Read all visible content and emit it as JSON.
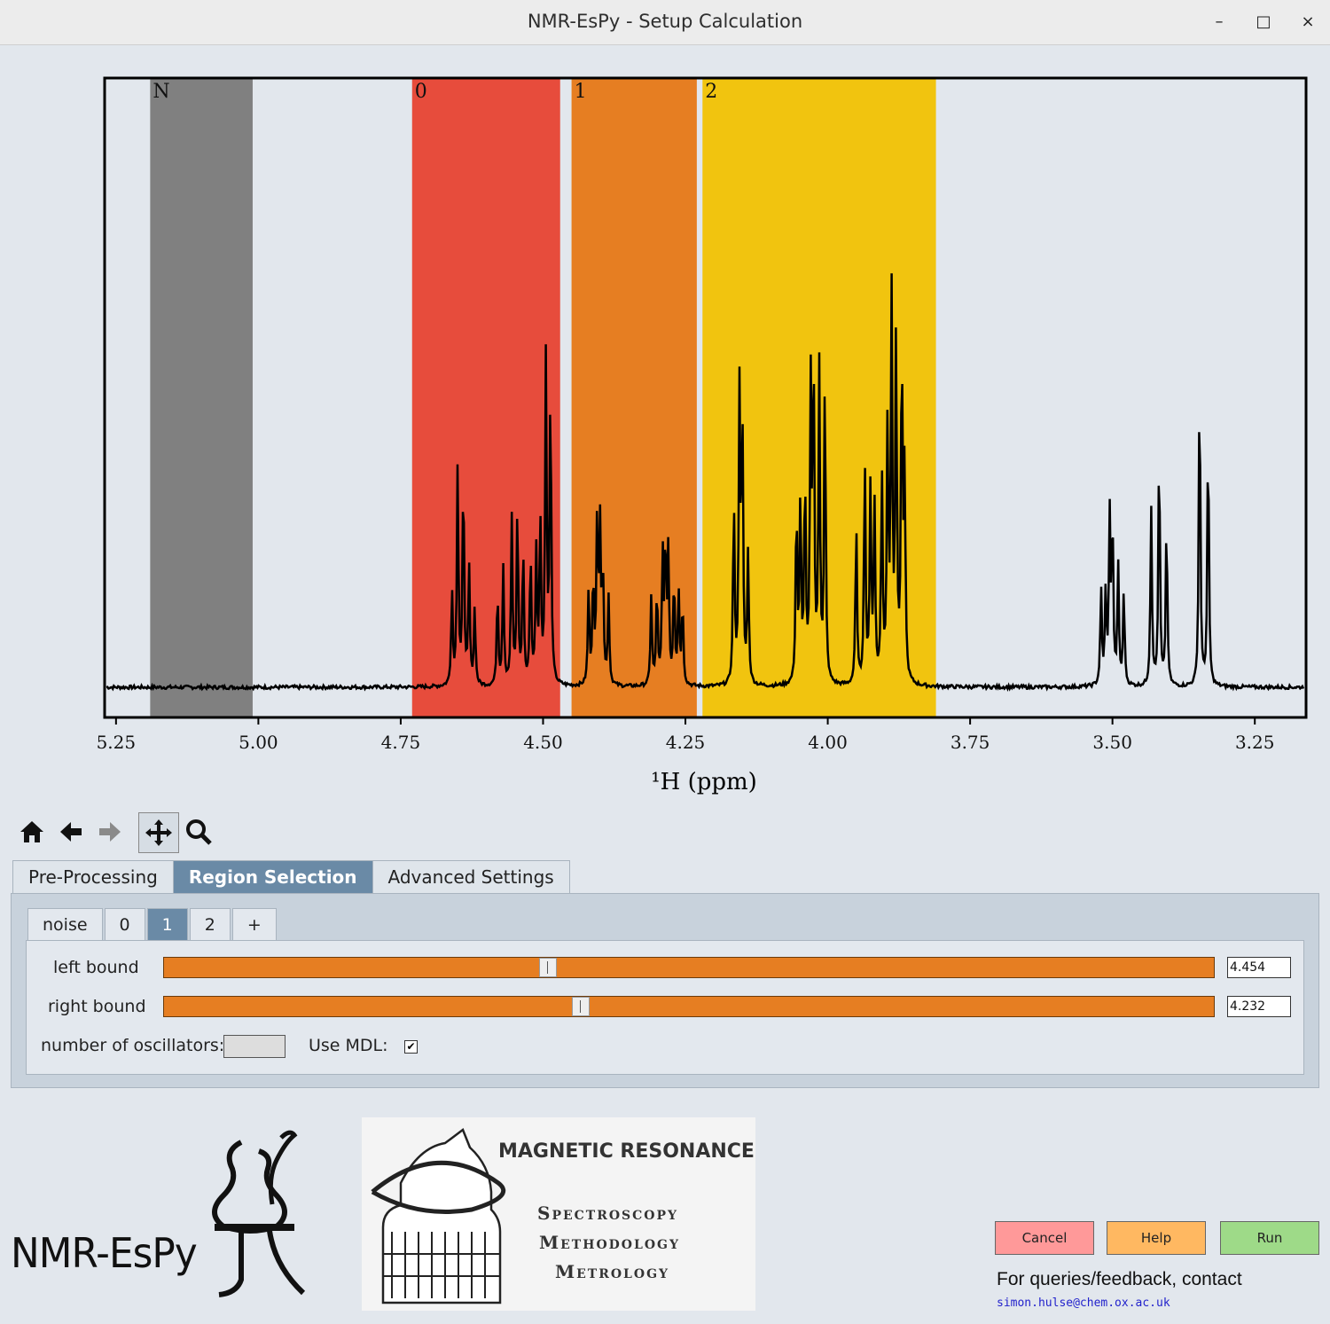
{
  "window": {
    "title": "NMR-EsPy - Setup Calculation",
    "controls": [
      "–",
      "□",
      "×"
    ]
  },
  "plot": {
    "region_labels": [
      "N",
      "0",
      "1",
      "2"
    ],
    "tick_labels": [
      "5.25",
      "5.00",
      "4.75",
      "4.50",
      "4.25",
      "4.00",
      "3.75",
      "3.50",
      "3.25"
    ],
    "xlabel": "¹H (ppm)"
  },
  "chart_data": {
    "type": "line",
    "xlabel": "¹H (ppm)",
    "xlim": [
      5.27,
      3.16
    ],
    "xticks": [
      5.25,
      5.0,
      4.75,
      4.5,
      4.25,
      4.0,
      3.75,
      3.5,
      3.25
    ],
    "regions": [
      {
        "label": "N",
        "from": 5.19,
        "to": 5.01,
        "color": "#808080"
      },
      {
        "label": "0",
        "from": 4.73,
        "to": 4.47,
        "color": "#e74c3c"
      },
      {
        "label": "1",
        "from": 4.45,
        "to": 4.23,
        "color": "#e67e22"
      },
      {
        "label": "2",
        "from": 4.22,
        "to": 3.81,
        "color": "#f1c40f"
      }
    ],
    "peaks": [
      [
        4.66,
        0.16
      ],
      [
        4.65,
        0.37
      ],
      [
        4.64,
        0.36
      ],
      [
        4.63,
        0.2
      ],
      [
        4.62,
        0.13
      ],
      [
        4.58,
        0.16
      ],
      [
        4.57,
        0.2
      ],
      [
        4.555,
        0.28
      ],
      [
        4.545,
        0.3
      ],
      [
        4.535,
        0.23
      ],
      [
        4.522,
        0.22
      ],
      [
        4.512,
        0.22
      ],
      [
        4.505,
        0.28
      ],
      [
        4.495,
        0.55
      ],
      [
        4.487,
        0.5
      ],
      [
        4.42,
        0.16
      ],
      [
        4.412,
        0.18
      ],
      [
        4.405,
        0.28
      ],
      [
        4.4,
        0.26
      ],
      [
        4.395,
        0.2
      ],
      [
        4.385,
        0.15
      ],
      [
        4.31,
        0.15
      ],
      [
        4.3,
        0.16
      ],
      [
        4.29,
        0.22
      ],
      [
        4.285,
        0.23
      ],
      [
        4.28,
        0.22
      ],
      [
        4.27,
        0.18
      ],
      [
        4.262,
        0.16
      ],
      [
        4.255,
        0.14
      ],
      [
        4.165,
        0.31
      ],
      [
        4.155,
        0.49
      ],
      [
        4.15,
        0.44
      ],
      [
        4.14,
        0.22
      ],
      [
        4.055,
        0.3
      ],
      [
        4.048,
        0.31
      ],
      [
        4.04,
        0.35
      ],
      [
        4.03,
        0.49
      ],
      [
        4.025,
        0.55
      ],
      [
        4.015,
        0.53
      ],
      [
        4.005,
        0.52
      ],
      [
        3.95,
        0.27
      ],
      [
        3.935,
        0.38
      ],
      [
        3.925,
        0.33
      ],
      [
        3.918,
        0.3
      ],
      [
        3.905,
        0.35
      ],
      [
        3.895,
        0.43
      ],
      [
        3.888,
        0.65
      ],
      [
        3.88,
        0.58
      ],
      [
        3.87,
        0.57
      ],
      [
        3.865,
        0.35
      ],
      [
        3.52,
        0.16
      ],
      [
        3.512,
        0.15
      ],
      [
        3.505,
        0.28
      ],
      [
        3.5,
        0.28
      ],
      [
        3.49,
        0.2
      ],
      [
        3.48,
        0.16
      ],
      [
        3.432,
        0.3
      ],
      [
        3.418,
        0.41
      ],
      [
        3.405,
        0.28
      ],
      [
        3.347,
        0.53
      ],
      [
        3.332,
        0.43
      ]
    ]
  },
  "toolbar": {
    "icons": [
      "home-icon",
      "back-arrow-icon",
      "forward-arrow-icon",
      "pan-icon",
      "zoom-icon"
    ]
  },
  "tabs": [
    "Pre-Processing",
    "Region Selection",
    "Advanced Settings"
  ],
  "active_tab": 1,
  "region_tabs": [
    "noise",
    "0",
    "1",
    "2",
    "+"
  ],
  "active_region_tab": 2,
  "region_panel": {
    "left_bound_label": "left bound",
    "left_bound_value": "4.454",
    "left_bound_fraction": 0.365,
    "right_bound_label": "right bound",
    "right_bound_value": "4.232",
    "right_bound_fraction": 0.396,
    "oscillators_label": "number of oscillators:",
    "mdl_label": "Use MDL:",
    "mdl_checked": "✔",
    "slider_color": "#e67e22"
  },
  "logo": {
    "espy_text": "NMR-EsPy",
    "mr_title": "MAGNETIC RESONANCE",
    "mr_lines": [
      "Spectroscopy",
      "Methodology",
      "Metrology"
    ]
  },
  "buttons": {
    "cancel": "Cancel",
    "help": "Help",
    "run": "Run",
    "cancel_color": "#ff9999",
    "help_color": "#ffb861",
    "run_color": "#9eda88"
  },
  "contact": {
    "text": "For queries/feedback, contact",
    "email": "simon.hulse@chem.ox.ac.uk"
  }
}
